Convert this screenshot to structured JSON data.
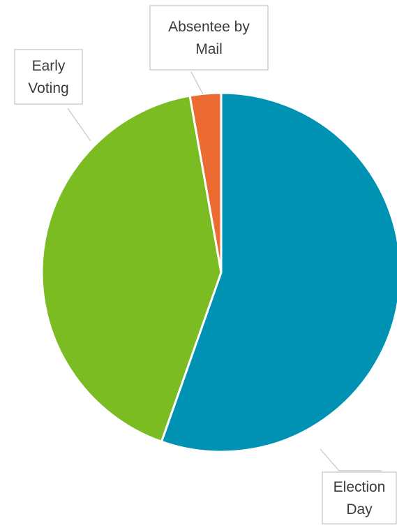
{
  "chart_data": {
    "type": "pie",
    "title": "",
    "start_angle_deg": 0,
    "direction": "clockwise",
    "slices": [
      {
        "label": "Election Day",
        "label_lines": [
          "Election",
          "Day"
        ],
        "value": 55.4,
        "color": "#0092B2"
      },
      {
        "label": "Early Voting",
        "label_lines": [
          "Early",
          "Voting"
        ],
        "value": 41.8,
        "color": "#7ABC22"
      },
      {
        "label": "Absentee by Mail",
        "label_lines": [
          "Absentee by",
          "Mail"
        ],
        "value": 2.8,
        "color": "#EC6B32"
      }
    ],
    "legend": "none",
    "labels": "callouts-outside"
  }
}
